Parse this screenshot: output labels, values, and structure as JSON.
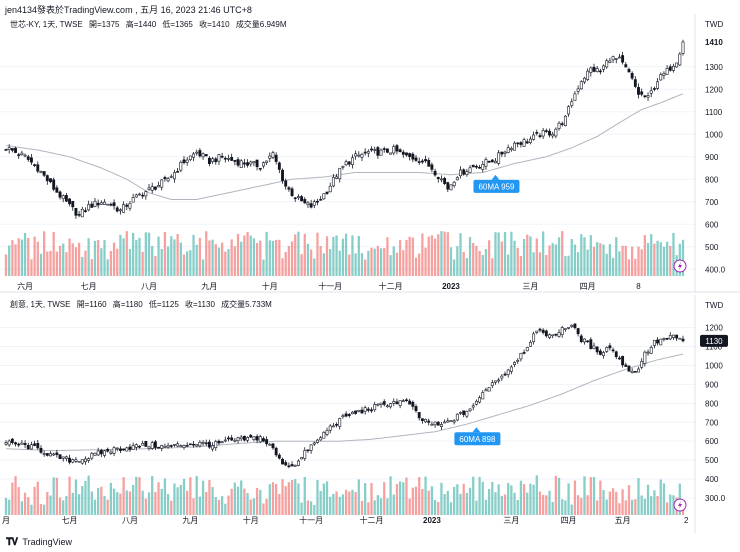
{
  "header": {
    "publisher": "jen4134發表於TradingView.com , 五月 16, 2023 21:46 UTC+8"
  },
  "footer": {
    "brand": "TradingView"
  },
  "colors": {
    "up": "#26a69a",
    "down": "#ef5350",
    "ma": "#b2b5be",
    "text": "#131722",
    "badge": "#2196f3",
    "flash": "#9c27b0"
  },
  "chart_data": [
    {
      "type": "candlestick",
      "symbol": "世芯-KY, 1天, TWSE",
      "ohlc_labels": [
        "開=1375",
        "高=1440",
        "低=1365",
        "收=1410",
        "成交量6.949M"
      ],
      "currency": "TWD",
      "ylim": [
        370,
        1490
      ],
      "y_ticks": [
        "1300",
        "1200",
        "1100",
        "1000",
        "900",
        "800",
        "700",
        "600",
        "500",
        "400.0"
      ],
      "y_tick_values": [
        1300,
        1200,
        1100,
        1000,
        900,
        800,
        700,
        600,
        500,
        400
      ],
      "last_price": "1410",
      "last_value": 1410,
      "x_labels": [
        "六月",
        "七月",
        "八月",
        "九月",
        "十月",
        "十一月",
        "十二月",
        "2023",
        "三月",
        "四月",
        "8"
      ],
      "x_label_index": [
        6,
        26,
        45,
        64,
        83,
        102,
        121,
        140,
        165,
        183,
        199
      ],
      "ma_label": "60MA 959",
      "ma_label_index": 154,
      "vol_scale": [
        400,
        570
      ],
      "close_anchors": [
        [
          0,
          940
        ],
        [
          6,
          900
        ],
        [
          10,
          850
        ],
        [
          15,
          760
        ],
        [
          20,
          680
        ],
        [
          23,
          640
        ],
        [
          26,
          680
        ],
        [
          30,
          700
        ],
        [
          33,
          690
        ],
        [
          36,
          660
        ],
        [
          39,
          700
        ],
        [
          42,
          730
        ],
        [
          46,
          760
        ],
        [
          50,
          790
        ],
        [
          53,
          830
        ],
        [
          56,
          880
        ],
        [
          60,
          920
        ],
        [
          64,
          880
        ],
        [
          68,
          900
        ],
        [
          72,
          880
        ],
        [
          76,
          870
        ],
        [
          80,
          860
        ],
        [
          84,
          910
        ],
        [
          88,
          770
        ],
        [
          91,
          720
        ],
        [
          94,
          690
        ],
        [
          96,
          680
        ],
        [
          98,
          700
        ],
        [
          101,
          750
        ],
        [
          104,
          820
        ],
        [
          107,
          870
        ],
        [
          110,
          900
        ],
        [
          114,
          920
        ],
        [
          118,
          920
        ],
        [
          122,
          930
        ],
        [
          126,
          900
        ],
        [
          130,
          890
        ],
        [
          134,
          850
        ],
        [
          137,
          800
        ],
        [
          139,
          760
        ],
        [
          142,
          820
        ],
        [
          146,
          850
        ],
        [
          150,
          870
        ],
        [
          154,
          890
        ],
        [
          157,
          930
        ],
        [
          160,
          960
        ],
        [
          164,
          970
        ],
        [
          168,
          1000
        ],
        [
          172,
          1010
        ],
        [
          176,
          1070
        ],
        [
          178,
          1150
        ],
        [
          181,
          1240
        ],
        [
          184,
          1290
        ],
        [
          187,
          1280
        ],
        [
          190,
          1340
        ],
        [
          193,
          1330
        ],
        [
          196,
          1270
        ],
        [
          199,
          1180
        ],
        [
          202,
          1160
        ],
        [
          205,
          1240
        ],
        [
          208,
          1280
        ],
        [
          211,
          1330
        ],
        [
          213,
          1410
        ]
      ],
      "ma_anchors": [
        [
          0,
          950
        ],
        [
          10,
          930
        ],
        [
          20,
          900
        ],
        [
          30,
          850
        ],
        [
          38,
          800
        ],
        [
          45,
          740
        ],
        [
          52,
          710
        ],
        [
          60,
          710
        ],
        [
          70,
          740
        ],
        [
          80,
          770
        ],
        [
          90,
          800
        ],
        [
          100,
          810
        ],
        [
          110,
          830
        ],
        [
          120,
          830
        ],
        [
          130,
          830
        ],
        [
          140,
          820
        ],
        [
          150,
          830
        ],
        [
          160,
          870
        ],
        [
          170,
          900
        ],
        [
          178,
          940
        ],
        [
          186,
          990
        ],
        [
          194,
          1060
        ],
        [
          200,
          1110
        ],
        [
          206,
          1140
        ],
        [
          213,
          1180
        ]
      ]
    },
    {
      "type": "candlestick",
      "symbol": "創意, 1天, TWSE",
      "ohlc_labels": [
        "開=1160",
        "高=1180",
        "低=1125",
        "收=1130",
        "成交量5.733M"
      ],
      "currency": "TWD",
      "ylim": [
        210,
        1330
      ],
      "y_ticks": [
        "1200",
        "1100",
        "1000",
        "900",
        "800",
        "700",
        "600",
        "500",
        "400",
        "300.0"
      ],
      "y_tick_values": [
        1200,
        1100,
        1000,
        900,
        800,
        700,
        600,
        500,
        400,
        300
      ],
      "last_price": "1130",
      "last_value": 1130,
      "x_labels": [
        "月",
        "七月",
        "八月",
        "九月",
        "十月",
        "十一月",
        "十二月",
        "2023",
        "三月",
        "四月",
        "五月",
        "2"
      ],
      "x_label_index": [
        0,
        20,
        39,
        58,
        77,
        96,
        115,
        134,
        159,
        177,
        194,
        214
      ],
      "ma_label": "60MA 898",
      "ma_label_index": 148,
      "vol_scale": [
        210,
        420
      ],
      "close_anchors": [
        [
          0,
          590
        ],
        [
          5,
          580
        ],
        [
          10,
          560
        ],
        [
          15,
          520
        ],
        [
          20,
          500
        ],
        [
          25,
          510
        ],
        [
          30,
          540
        ],
        [
          35,
          560
        ],
        [
          40,
          570
        ],
        [
          45,
          580
        ],
        [
          50,
          570
        ],
        [
          55,
          580
        ],
        [
          60,
          590
        ],
        [
          65,
          580
        ],
        [
          70,
          600
        ],
        [
          75,
          610
        ],
        [
          80,
          620
        ],
        [
          84,
          560
        ],
        [
          86,
          500
        ],
        [
          89,
          470
        ],
        [
          92,
          490
        ],
        [
          95,
          560
        ],
        [
          98,
          600
        ],
        [
          101,
          660
        ],
        [
          104,
          700
        ],
        [
          108,
          740
        ],
        [
          112,
          760
        ],
        [
          116,
          780
        ],
        [
          120,
          800
        ],
        [
          124,
          810
        ],
        [
          127,
          800
        ],
        [
          130,
          720
        ],
        [
          133,
          700
        ],
        [
          136,
          680
        ],
        [
          139,
          700
        ],
        [
          142,
          730
        ],
        [
          145,
          760
        ],
        [
          148,
          800
        ],
        [
          151,
          880
        ],
        [
          154,
          920
        ],
        [
          157,
          960
        ],
        [
          160,
          1020
        ],
        [
          163,
          1080
        ],
        [
          166,
          1160
        ],
        [
          169,
          1180
        ],
        [
          172,
          1150
        ],
        [
          175,
          1200
        ],
        [
          178,
          1210
        ],
        [
          181,
          1140
        ],
        [
          184,
          1100
        ],
        [
          187,
          1070
        ],
        [
          190,
          1100
        ],
        [
          193,
          1030
        ],
        [
          196,
          980
        ],
        [
          198,
          960
        ],
        [
          201,
          1060
        ],
        [
          204,
          1120
        ],
        [
          207,
          1140
        ],
        [
          210,
          1150
        ],
        [
          213,
          1130
        ]
      ],
      "ma_anchors": [
        [
          0,
          560
        ],
        [
          15,
          550
        ],
        [
          30,
          555
        ],
        [
          45,
          560
        ],
        [
          60,
          570
        ],
        [
          75,
          590
        ],
        [
          85,
          600
        ],
        [
          95,
          600
        ],
        [
          105,
          600
        ],
        [
          115,
          610
        ],
        [
          125,
          630
        ],
        [
          135,
          650
        ],
        [
          145,
          690
        ],
        [
          155,
          740
        ],
        [
          165,
          790
        ],
        [
          175,
          850
        ],
        [
          185,
          920
        ],
        [
          195,
          980
        ],
        [
          205,
          1030
        ],
        [
          213,
          1060
        ]
      ]
    }
  ]
}
